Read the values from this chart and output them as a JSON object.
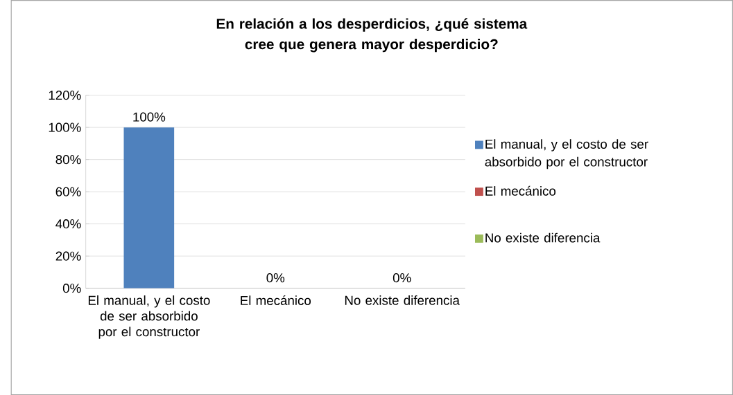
{
  "chart_data": {
    "type": "bar",
    "title": "En relación a los desperdicios, ¿qué sistema cree que genera mayor desperdicio?",
    "categories": [
      "El manual, y el costo de ser absorbido por el constructor",
      "El mecánico",
      "No existe diferencia"
    ],
    "series": [
      {
        "name": "El manual, y el costo de ser absorbido por el constructor",
        "color": "#4f81bd",
        "values": [
          100,
          null,
          null
        ],
        "value_labels": [
          "100%",
          null,
          null
        ]
      },
      {
        "name": "El mecánico",
        "color": "#c0504d",
        "values": [
          null,
          0,
          null
        ],
        "value_labels": [
          null,
          "0%",
          null
        ]
      },
      {
        "name": "No existe diferencia",
        "color": "#9bbb59",
        "values": [
          null,
          null,
          0
        ],
        "value_labels": [
          null,
          null,
          "0%"
        ]
      }
    ],
    "ylim": [
      0,
      120
    ],
    "yticks": [
      {
        "value": 0,
        "label": "0%"
      },
      {
        "value": 20,
        "label": "20%"
      },
      {
        "value": 40,
        "label": "40%"
      },
      {
        "value": 60,
        "label": "60%"
      },
      {
        "value": 80,
        "label": "80%"
      },
      {
        "value": 100,
        "label": "100%"
      },
      {
        "value": 120,
        "label": "120%"
      }
    ],
    "grid": "y",
    "legend": "right"
  }
}
